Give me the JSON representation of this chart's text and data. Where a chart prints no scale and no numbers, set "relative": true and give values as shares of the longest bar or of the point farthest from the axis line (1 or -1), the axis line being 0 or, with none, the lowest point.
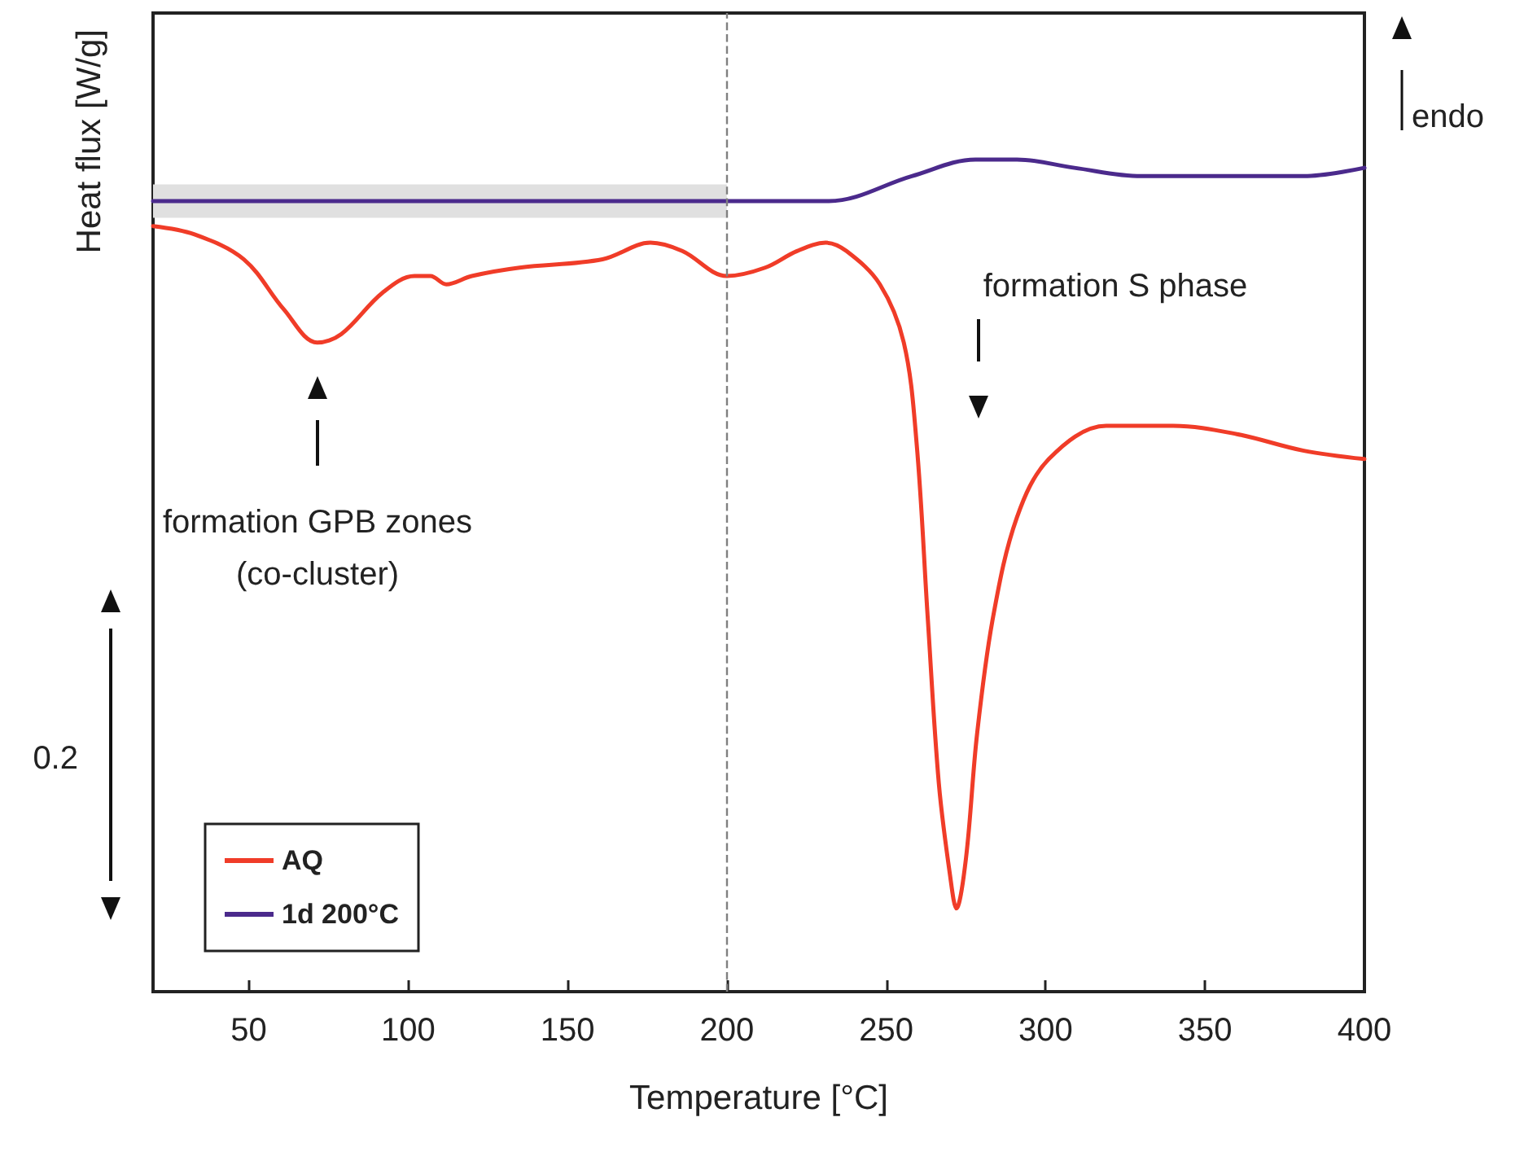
{
  "chart_data": {
    "type": "line",
    "relative": true,
    "xlabel": "Temperature [°C]",
    "ylabel": "Heat flux [W/g]",
    "xlim": [
      20,
      400
    ],
    "xticks": [
      50,
      100,
      150,
      200,
      250,
      300,
      350,
      400
    ],
    "legend": "bottom left",
    "grid": false,
    "marker": "none",
    "line_style": "solid",
    "series": [
      {
        "name": "AQ",
        "color": "#f03c28",
        "x": [
          20,
          33,
          48.5,
          61,
          71.5,
          79,
          92,
          102,
          107,
          112,
          120,
          135,
          161,
          176,
          186,
          200,
          212,
          222,
          231,
          237.5,
          248,
          255.5,
          259.5,
          263,
          266.5,
          270,
          272,
          275,
          278.5,
          283.5,
          291,
          301,
          319,
          340,
          360,
          381,
          400
        ],
        "values": [
          0.92,
          0.91,
          0.88,
          0.82,
          0.78,
          0.79,
          0.84,
          0.86,
          0.86,
          0.85,
          0.86,
          0.87,
          0.88,
          0.9,
          0.89,
          0.86,
          0.87,
          0.89,
          0.9,
          0.89,
          0.85,
          0.78,
          0.66,
          0.45,
          0.25,
          0.14,
          0.1,
          0.16,
          0.31,
          0.45,
          0.57,
          0.64,
          0.68,
          0.68,
          0.67,
          0.65,
          0.64
        ]
      },
      {
        "name": "1d 200°C",
        "color": "#4b2a8c",
        "x": [
          20,
          48.5,
          99.6,
          150.7,
          200.2,
          232,
          258,
          278,
          291,
          309,
          330,
          360,
          381,
          400
        ],
        "values": [
          0.95,
          0.95,
          0.95,
          0.95,
          0.95,
          0.95,
          0.98,
          1.0,
          1.0,
          0.99,
          0.98,
          0.98,
          0.98,
          0.99
        ]
      }
    ],
    "ref_lines": [
      {
        "axis": "x",
        "value": 200,
        "color": "#808080",
        "line_style": "dashed"
      }
    ],
    "bands": [
      {
        "axis": "y",
        "from": 0.93,
        "to": 0.97,
        "color": "#e0e0e0"
      }
    ],
    "annotations": [
      "formation GPB zones\n(co-cluster)",
      "formation S phase",
      "0.2",
      "endo"
    ]
  }
}
